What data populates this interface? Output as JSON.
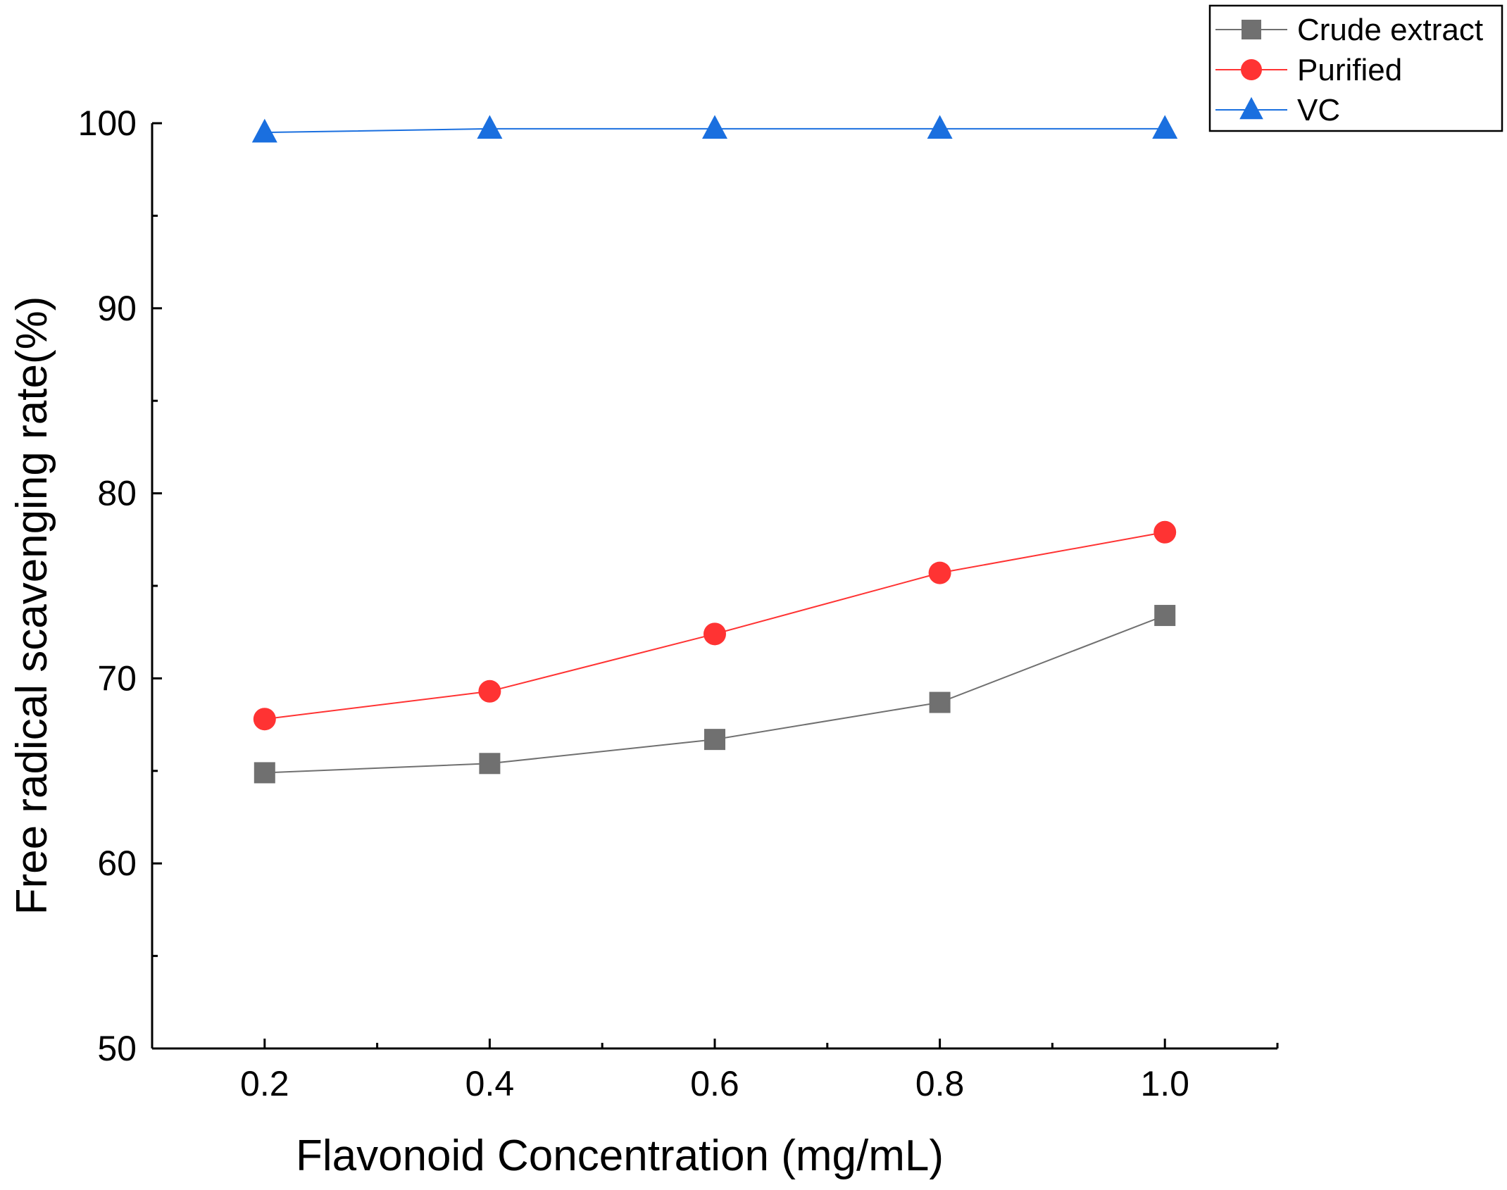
{
  "chart_data": {
    "type": "line",
    "x": [
      0.2,
      0.4,
      0.6,
      0.8,
      1.0
    ],
    "x_tick_labels": [
      "0.2",
      "0.4",
      "0.6",
      "0.8",
      "1.0"
    ],
    "y_ticks": [
      50,
      60,
      70,
      80,
      90,
      100
    ],
    "y_tick_labels": [
      "50",
      "60",
      "70",
      "80",
      "90",
      "100"
    ],
    "xlim": [
      0.1,
      1.1
    ],
    "ylim": [
      50,
      100
    ],
    "xlabel": "Flavonoid Concentration (mg/mL)",
    "ylabel": "Free radical scavenging rate(%)",
    "title": "",
    "grid": false,
    "legend_position": "top-right",
    "series": [
      {
        "name": "Crude extract",
        "marker": "square",
        "color": "#707070",
        "values": [
          64.9,
          65.4,
          66.7,
          68.7,
          73.4
        ]
      },
      {
        "name": "Purified",
        "marker": "circle",
        "color": "#ff3333",
        "values": [
          67.8,
          69.3,
          72.4,
          75.7,
          77.9
        ]
      },
      {
        "name": "VC",
        "marker": "triangle",
        "color": "#1a6fdf",
        "values": [
          99.5,
          99.7,
          99.7,
          99.7,
          99.7
        ]
      }
    ]
  }
}
